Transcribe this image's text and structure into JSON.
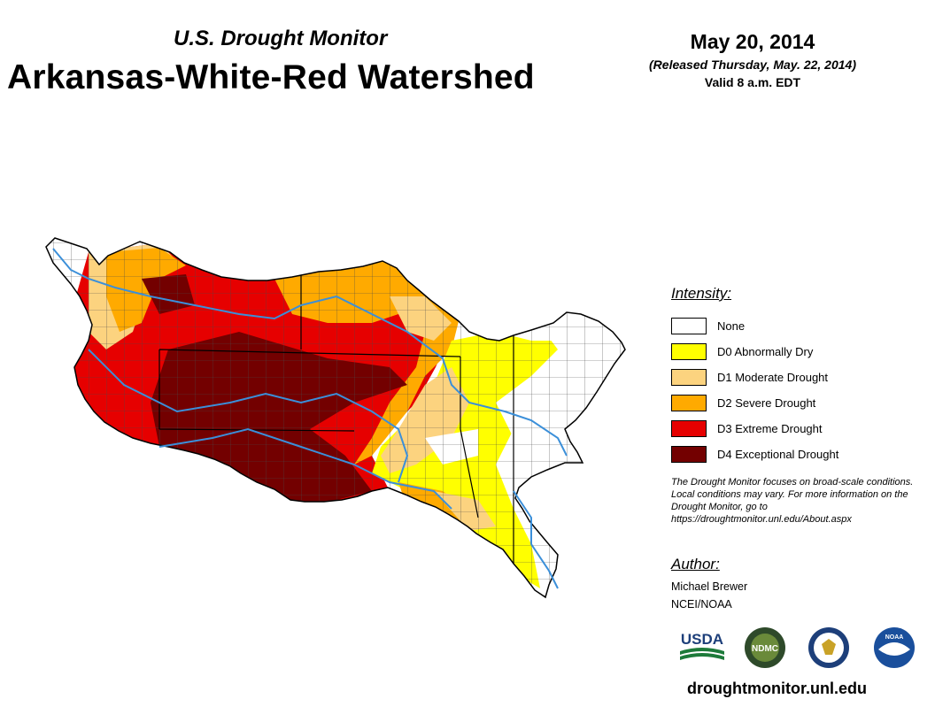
{
  "header": {
    "subtitle": "U.S. Drought Monitor",
    "title": "Arkansas-White-Red Watershed",
    "date": "May 20, 2014",
    "released": "(Released Thursday, May. 22, 2014)",
    "valid": "Valid 8 a.m. EDT"
  },
  "legend": {
    "title": "Intensity:",
    "items": [
      {
        "label": "None",
        "color": "#ffffff"
      },
      {
        "label": "D0 Abnormally Dry",
        "color": "#ffff00"
      },
      {
        "label": "D1 Moderate Drought",
        "color": "#fcd37f"
      },
      {
        "label": "D2 Severe Drought",
        "color": "#ffaa00"
      },
      {
        "label": "D3 Extreme Drought",
        "color": "#e60000"
      },
      {
        "label": "D4 Exceptional Drought",
        "color": "#730000"
      }
    ]
  },
  "note": "The Drought Monitor focuses on broad-scale conditions. Local conditions may vary. For more information on the Drought Monitor, go to https://droughtmonitor.unl.edu/About.aspx",
  "author": {
    "title": "Author:",
    "name": "Michael Brewer",
    "org": "NCEI/NOAA"
  },
  "logos": [
    {
      "name": "usda",
      "text": "USDA"
    },
    {
      "name": "ndmc",
      "text": "NDMC"
    },
    {
      "name": "commerce"
    },
    {
      "name": "noaa",
      "text": "NOAA"
    }
  ],
  "footer": {
    "url": "droughtmonitor.unl.edu"
  },
  "colors": {
    "river": "#3b8fd9",
    "county_line": "#555555"
  }
}
